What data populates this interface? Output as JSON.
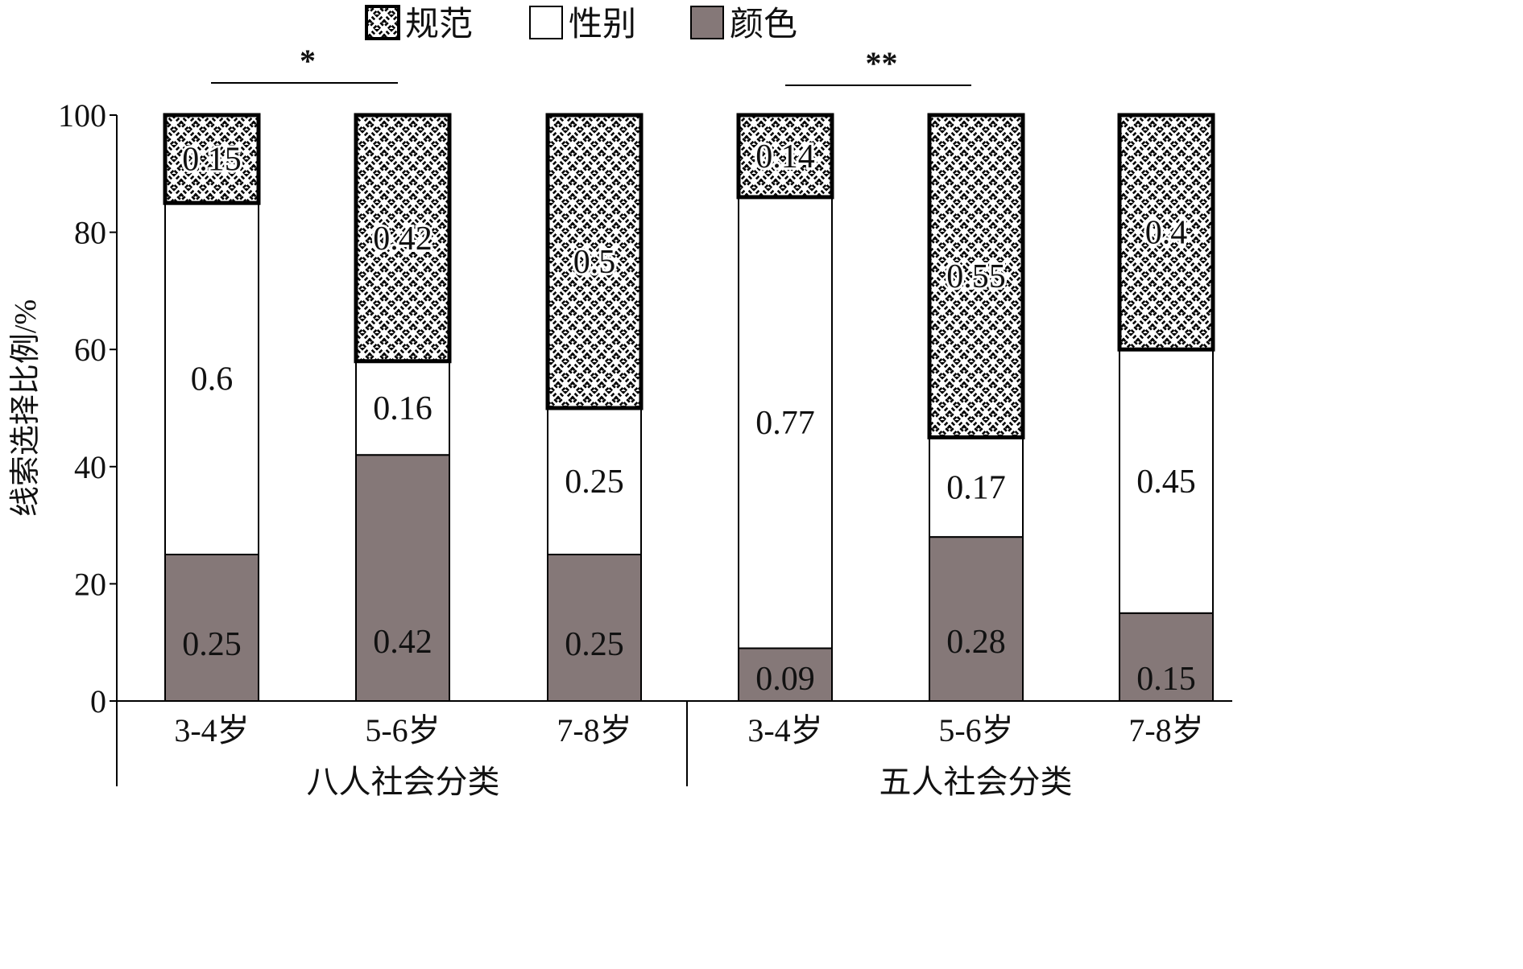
{
  "chart_data": {
    "type": "bar",
    "stacked": true,
    "ylabel": "线索选择比例/%",
    "ylim": [
      0,
      100
    ],
    "yticks": [
      0,
      20,
      40,
      60,
      80,
      100
    ],
    "legend_position": "top-center",
    "grid": false,
    "groups": [
      {
        "label": "八人社会分类",
        "categories": [
          "3-4岁",
          "5-6岁",
          "7-8岁"
        ],
        "significance": "*",
        "series": {
          "颜色": [
            "0.25",
            "0.42",
            "0.25"
          ],
          "性别": [
            "0.6",
            "0.16",
            "0.25"
          ],
          "规范": [
            "0.15",
            "0.42",
            "0.5"
          ]
        }
      },
      {
        "label": "五人社会分类",
        "categories": [
          "3-4岁",
          "5-6岁",
          "7-8岁"
        ],
        "significance": "**",
        "series": {
          "颜色": [
            "0.09",
            "0.28",
            "0.15"
          ],
          "性别": [
            "0.77",
            "0.17",
            "0.45"
          ],
          "规范": [
            "0.14",
            "0.55",
            "0.4"
          ]
        }
      }
    ],
    "series": [
      {
        "name": "规范",
        "pattern": "crosshatch",
        "color": "#ffffff"
      },
      {
        "name": "性别",
        "pattern": "none",
        "color": "#ffffff"
      },
      {
        "name": "颜色",
        "pattern": "none",
        "color": "#857878"
      }
    ],
    "stack_order": [
      "颜色",
      "性别",
      "规范"
    ]
  }
}
